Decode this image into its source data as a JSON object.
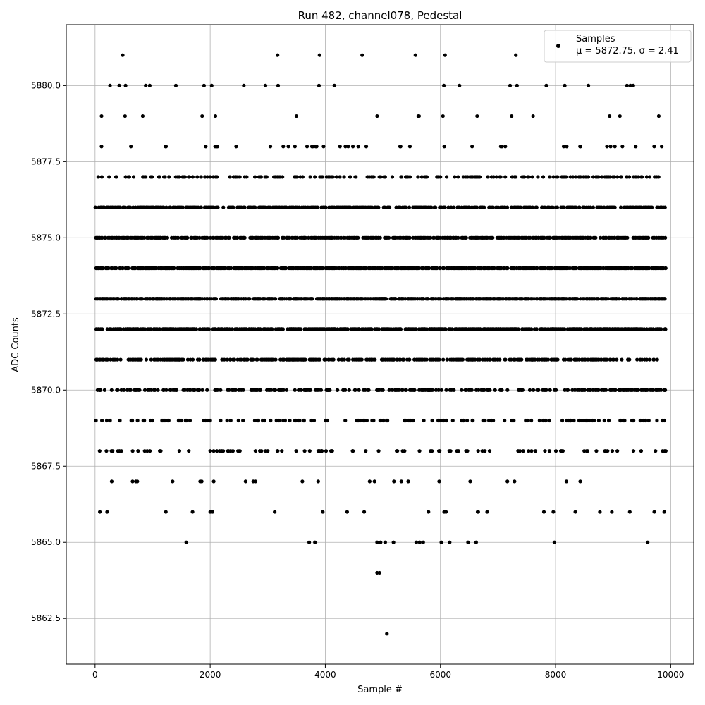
{
  "chart_data": {
    "type": "scatter",
    "title": "Run 482, channel078, Pedestal",
    "xlabel": "Sample #",
    "ylabel": "ADC Counts",
    "xlim": [
      -500,
      10400
    ],
    "ylim": [
      5861.0,
      5882.0
    ],
    "x_ticks": [
      0,
      2000,
      4000,
      6000,
      8000,
      10000
    ],
    "x_tick_labels": [
      "0",
      "2000",
      "4000",
      "6000",
      "8000",
      "10000"
    ],
    "y_ticks": [
      5862.5,
      5865.0,
      5867.5,
      5870.0,
      5872.5,
      5875.0,
      5877.5,
      5880.0
    ],
    "y_tick_labels": [
      "5862.5",
      "5865.0",
      "5867.5",
      "5870.0",
      "5872.5",
      "5875.0",
      "5877.5",
      "5880.0"
    ],
    "grid": true,
    "legend_position": "top-right",
    "marker_color": "#000000",
    "series": [
      {
        "name": "Samples",
        "legend_stats": "μ = 5872.75, σ = 2.41",
        "x_range": [
          0,
          9920
        ],
        "level_density": {
          "5881": 0.0006,
          "5880": 0.0016,
          "5879": 0.006,
          "5878": 0.014,
          "5877": 0.06,
          "5876": 0.12,
          "5875": 0.16,
          "5874": 0.17,
          "5873": 0.17,
          "5872": 0.16,
          "5871": 0.11,
          "5870": 0.08,
          "5869": 0.035,
          "5868": 0.03,
          "5867": 0.008,
          "5866": 0.006,
          "5865": 0.002
        },
        "outliers": [
          {
            "x": 480,
            "y": 5881
          },
          {
            "x": 3170,
            "y": 5881
          },
          {
            "x": 3900,
            "y": 5881
          },
          {
            "x": 6080,
            "y": 5881
          },
          {
            "x": 7310,
            "y": 5881
          },
          {
            "x": 260,
            "y": 5880
          },
          {
            "x": 420,
            "y": 5880
          },
          {
            "x": 530,
            "y": 5880
          },
          {
            "x": 880,
            "y": 5880
          },
          {
            "x": 950,
            "y": 5880
          },
          {
            "x": 2960,
            "y": 5880
          },
          {
            "x": 3180,
            "y": 5880
          },
          {
            "x": 3890,
            "y": 5880
          },
          {
            "x": 6060,
            "y": 5880
          },
          {
            "x": 7210,
            "y": 5880
          },
          {
            "x": 7330,
            "y": 5880
          },
          {
            "x": 8160,
            "y": 5880
          },
          {
            "x": 8570,
            "y": 5880
          },
          {
            "x": 9300,
            "y": 5880
          },
          {
            "x": 9350,
            "y": 5880
          },
          {
            "x": 3720,
            "y": 5865
          },
          {
            "x": 3820,
            "y": 5865
          },
          {
            "x": 4900,
            "y": 5865
          },
          {
            "x": 4960,
            "y": 5865
          },
          {
            "x": 5040,
            "y": 5865
          },
          {
            "x": 5580,
            "y": 5865
          },
          {
            "x": 5640,
            "y": 5865
          },
          {
            "x": 5700,
            "y": 5865
          },
          {
            "x": 6160,
            "y": 5865
          },
          {
            "x": 6480,
            "y": 5865
          },
          {
            "x": 6620,
            "y": 5865
          },
          {
            "x": 7980,
            "y": 5865
          },
          {
            "x": 9600,
            "y": 5865
          },
          {
            "x": 4900,
            "y": 5864
          },
          {
            "x": 4940,
            "y": 5864
          },
          {
            "x": 5070,
            "y": 5862
          }
        ]
      }
    ]
  }
}
